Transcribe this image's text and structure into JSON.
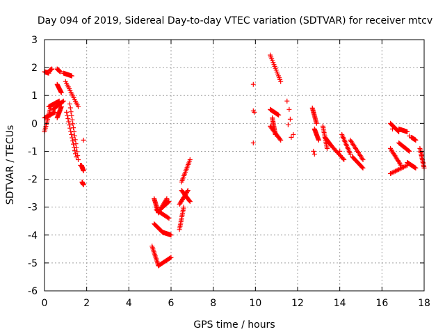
{
  "chart_data": {
    "type": "scatter",
    "title": "Day 094 of 2019, Sidereal Day-to-day VTEC variation (SDTVAR) for receiver mtcv",
    "xlabel": "GPS time / hours",
    "ylabel": "SDTVAR / TECUs",
    "xlim": [
      0,
      18
    ],
    "ylim": [
      -6,
      3
    ],
    "xticks": [
      0,
      2,
      4,
      6,
      8,
      10,
      12,
      14,
      16,
      18
    ],
    "yticks": [
      -6,
      -5,
      -4,
      -3,
      -2,
      -1,
      0,
      1,
      2,
      3
    ],
    "grid": true,
    "marker": "+",
    "marker_color": "#ff0000",
    "segments": [
      [
        0.0,
        1.85,
        0.2,
        1.8
      ],
      [
        0.25,
        1.9,
        0.35,
        1.95
      ],
      [
        0.6,
        1.95,
        0.75,
        1.85
      ],
      [
        0.9,
        1.8,
        1.3,
        1.7
      ],
      [
        0.6,
        1.4,
        0.8,
        1.1
      ],
      [
        1.0,
        1.5,
        1.6,
        0.6
      ],
      [
        1.2,
        0.7,
        1.6,
        -1.3
      ],
      [
        1.05,
        0.4,
        1.5,
        -1.2
      ],
      [
        0.0,
        -0.3,
        0.3,
        0.6
      ],
      [
        0.2,
        0.6,
        0.7,
        0.8
      ],
      [
        0.0,
        0.2,
        0.5,
        0.4
      ],
      [
        0.4,
        0.5,
        0.9,
        0.8
      ],
      [
        0.6,
        0.2,
        0.8,
        0.6
      ],
      [
        1.75,
        -1.5,
        1.85,
        -1.7
      ],
      [
        1.78,
        -2.1,
        1.85,
        -2.2
      ],
      [
        5.2,
        -2.7,
        5.4,
        -3.2
      ],
      [
        5.2,
        -3.6,
        5.6,
        -3.9
      ],
      [
        5.3,
        -3.1,
        5.9,
        -3.4
      ],
      [
        5.6,
        -3.0,
        5.9,
        -2.8
      ],
      [
        5.6,
        -3.9,
        6.0,
        -4.0
      ],
      [
        5.4,
        -3.2,
        5.8,
        -2.7
      ],
      [
        5.1,
        -4.4,
        5.4,
        -5.1
      ],
      [
        5.4,
        -5.1,
        6.0,
        -4.8
      ],
      [
        6.4,
        -3.8,
        6.6,
        -3.0
      ],
      [
        6.5,
        -2.1,
        6.9,
        -1.3
      ],
      [
        6.4,
        -2.9,
        6.8,
        -2.4
      ],
      [
        6.5,
        -2.4,
        6.9,
        -2.8
      ],
      [
        10.7,
        2.45,
        11.2,
        1.5
      ],
      [
        10.7,
        0.5,
        11.1,
        0.3
      ],
      [
        10.7,
        -0.1,
        11.2,
        -0.6
      ],
      [
        10.8,
        0.2,
        10.95,
        -0.4
      ],
      [
        12.7,
        0.55,
        12.9,
        0.0
      ],
      [
        12.8,
        -0.2,
        13.0,
        -0.6
      ],
      [
        13.2,
        -0.1,
        13.4,
        -0.9
      ],
      [
        13.3,
        -0.5,
        13.6,
        -0.8
      ],
      [
        13.6,
        -0.8,
        14.2,
        -1.3
      ],
      [
        14.1,
        -0.4,
        14.5,
        -1.1
      ],
      [
        14.5,
        -0.6,
        15.1,
        -1.3
      ],
      [
        14.6,
        -1.2,
        15.1,
        -1.6
      ],
      [
        16.4,
        0.0,
        16.8,
        -0.3
      ],
      [
        16.8,
        -0.2,
        17.2,
        -0.3
      ],
      [
        16.4,
        -0.9,
        16.9,
        -1.5
      ],
      [
        16.4,
        -1.8,
        17.2,
        -1.5
      ],
      [
        16.8,
        -0.7,
        17.3,
        -1.0
      ],
      [
        17.2,
        -1.4,
        17.6,
        -1.6
      ],
      [
        17.4,
        -0.5,
        17.6,
        -0.6
      ],
      [
        17.8,
        -0.9,
        18.0,
        -1.6
      ]
    ],
    "points": [
      [
        1.85,
        -0.6
      ],
      [
        1.7,
        -1.5
      ],
      [
        11.55,
        -0.05
      ],
      [
        11.65,
        0.15
      ],
      [
        11.7,
        -0.5
      ],
      [
        11.8,
        -0.4
      ],
      [
        9.9,
        1.4
      ],
      [
        9.9,
        0.45
      ],
      [
        9.9,
        -0.7
      ],
      [
        9.95,
        0.4
      ],
      [
        11.5,
        0.8
      ],
      [
        11.6,
        0.5
      ],
      [
        12.75,
        -1.0
      ],
      [
        12.8,
        -1.1
      ],
      [
        17.3,
        -0.45
      ],
      [
        17.9,
        -1.1
      ],
      [
        16.5,
        -0.2
      ],
      [
        14.0,
        -1.0
      ]
    ]
  }
}
